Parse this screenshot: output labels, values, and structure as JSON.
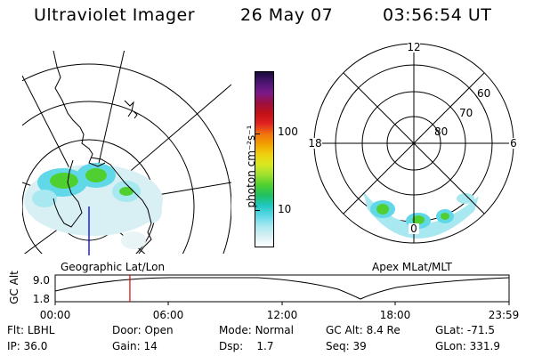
{
  "header": {
    "instrument": "Ultraviolet Imager",
    "date": "26 May 07",
    "time": "03:56:54 UT"
  },
  "colorbar": {
    "label": "photon cm⁻²s⁻¹",
    "ticks": [
      "100",
      "10"
    ],
    "colors": [
      "#1a0a3a",
      "#4a1670",
      "#7a1a8a",
      "#9a1040",
      "#c01018",
      "#e02020",
      "#f07010",
      "#f0a000",
      "#f0d010",
      "#d8e820",
      "#a0e030",
      "#50d030",
      "#20c060",
      "#20c8c0",
      "#60d8e8",
      "#a8e8f0",
      "#d8f0f4",
      "#ffffff"
    ]
  },
  "left_map": {
    "caption": "Geographic Lat/Lon"
  },
  "right_map": {
    "caption": "Apex MLat/MLT",
    "mlt_labels": {
      "top": "12",
      "left": "18",
      "right": "6",
      "bottom": "0"
    },
    "lat_labels": [
      "60",
      "70",
      "80"
    ]
  },
  "altitude_plot": {
    "ylabel": "GC Alt",
    "yticks": [
      "9.0",
      "1.8"
    ],
    "xticks": [
      "00:00",
      "06:00",
      "12:00",
      "18:00",
      "23:59"
    ],
    "current_time_hours": 3.95,
    "marker_color": "#dd0000"
  },
  "footer": {
    "row1": [
      {
        "key": "Flt:",
        "val": "LBHL"
      },
      {
        "key": "Door:",
        "val": "Open"
      },
      {
        "key": "Mode:",
        "val": "Normal"
      },
      {
        "key": "GC Alt:",
        "val": "8.4 Re"
      },
      {
        "key": "GLat:",
        "val": "-71.5"
      }
    ],
    "row2": [
      {
        "key": "IP:",
        "val": "36.0"
      },
      {
        "key": "Gain:",
        "val": "14"
      },
      {
        "key": "Dsp:",
        "val": "1.7"
      },
      {
        "key": "Seq:",
        "val": "39"
      },
      {
        "key": "GLon:",
        "val": "331.9"
      }
    ]
  }
}
